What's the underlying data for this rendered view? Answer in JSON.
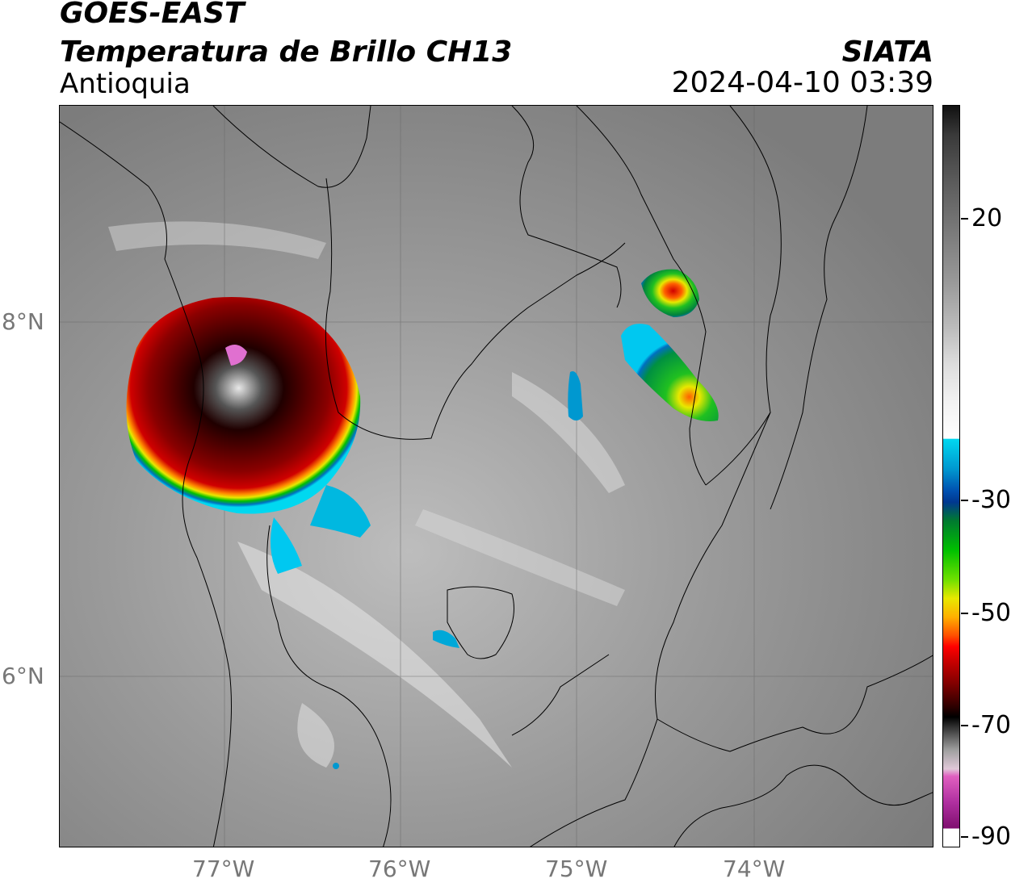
{
  "header": {
    "satellite": "GOES-EAST",
    "product": "Temperatura de Brillo CH13",
    "region": "Antioquia",
    "organization": "SIATA",
    "timestamp": "2024-04-10 03:39"
  },
  "map": {
    "x_axis_labels": [
      "77°W",
      "76°W",
      "75°W",
      "74°W"
    ],
    "y_axis_labels": [
      "8°N",
      "6°N"
    ]
  },
  "colorbar": {
    "tick_labels": [
      "20",
      "-30",
      "-50",
      "-70",
      "-90"
    ],
    "range": [
      -90,
      40
    ],
    "colors": {
      "warm": "#000000",
      "cold_cyan": "#00d8f0",
      "cold_red": "#c80000",
      "coldest_magenta": "#b030a0"
    }
  }
}
